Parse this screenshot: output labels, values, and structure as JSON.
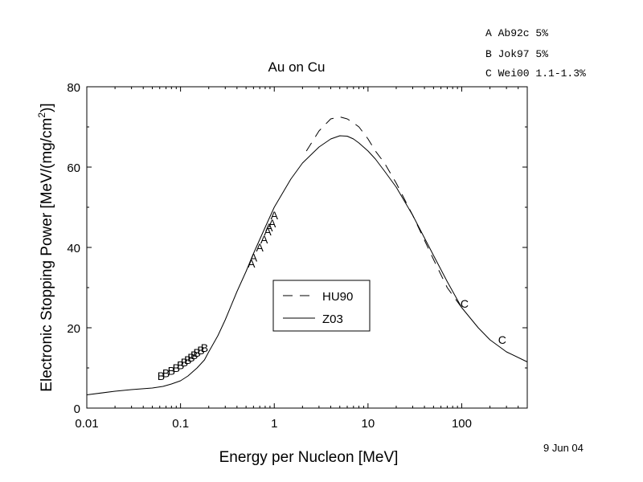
{
  "chart_data": {
    "type": "line",
    "title": "Au on Cu",
    "xlabel": "Energy per Nucleon [MeV]",
    "ylabel_main": "Electronic Stopping Power [MeV/(mg/cm",
    "ylabel_sup": "2",
    "ylabel_end": ")]",
    "x_scale": "log",
    "xlim": [
      0.01,
      500
    ],
    "ylim": [
      0,
      80
    ],
    "x_ticks": [
      {
        "value": 0.01,
        "label": "0.01"
      },
      {
        "value": 0.1,
        "label": "0.1"
      },
      {
        "value": 1,
        "label": "1"
      },
      {
        "value": 10,
        "label": "10"
      },
      {
        "value": 100,
        "label": "100"
      }
    ],
    "y_ticks": [
      {
        "value": 0,
        "label": "0"
      },
      {
        "value": 20,
        "label": "20"
      },
      {
        "value": 40,
        "label": "40"
      },
      {
        "value": 60,
        "label": "60"
      },
      {
        "value": 80,
        "label": "80"
      }
    ],
    "grid": false,
    "legend_position": "center",
    "series": [
      {
        "name": "HU90",
        "style": "dashed",
        "x": [
          2.2,
          3,
          4,
          5,
          6,
          7,
          8,
          10,
          12,
          15,
          20,
          30,
          50,
          70,
          100
        ],
        "y": [
          64,
          69,
          72,
          72.5,
          72,
          71,
          70,
          67,
          64,
          61,
          56,
          48,
          37,
          30,
          25
        ]
      },
      {
        "name": "Z03",
        "style": "solid",
        "x": [
          0.01,
          0.02,
          0.03,
          0.05,
          0.065,
          0.08,
          0.1,
          0.12,
          0.15,
          0.18,
          0.2,
          0.25,
          0.3,
          0.4,
          0.5,
          0.6,
          0.7,
          0.8,
          1,
          1.5,
          2,
          3,
          4,
          5,
          6,
          7,
          8,
          10,
          12,
          15,
          20,
          30,
          50,
          70,
          100,
          150,
          200,
          300,
          500
        ],
        "y": [
          3.3,
          4.2,
          4.6,
          5.0,
          5.4,
          6.0,
          6.8,
          8.0,
          10.0,
          12.0,
          14.0,
          18.0,
          22.0,
          29.0,
          34.0,
          38.5,
          42.0,
          45.0,
          50.0,
          57.0,
          61.0,
          65.0,
          67.0,
          67.8,
          67.7,
          67.0,
          66.0,
          64.0,
          62.0,
          59.0,
          55.0,
          48.0,
          38.0,
          31.5,
          25.0,
          20.0,
          17.0,
          14.0,
          11.5
        ]
      }
    ],
    "markers": [
      {
        "letter": "B",
        "x": 0.062,
        "y": 8
      },
      {
        "letter": "B",
        "x": 0.07,
        "y": 8.7
      },
      {
        "letter": "B",
        "x": 0.08,
        "y": 9.3
      },
      {
        "letter": "B",
        "x": 0.09,
        "y": 10
      },
      {
        "letter": "B",
        "x": 0.1,
        "y": 10.7
      },
      {
        "letter": "B",
        "x": 0.11,
        "y": 11.4
      },
      {
        "letter": "B",
        "x": 0.12,
        "y": 12
      },
      {
        "letter": "B",
        "x": 0.13,
        "y": 12.6
      },
      {
        "letter": "B",
        "x": 0.14,
        "y": 13.2
      },
      {
        "letter": "B",
        "x": 0.15,
        "y": 13.8
      },
      {
        "letter": "B",
        "x": 0.165,
        "y": 14.4
      },
      {
        "letter": "B",
        "x": 0.18,
        "y": 15
      },
      {
        "letter": "A",
        "x": 0.57,
        "y": 36
      },
      {
        "letter": "A",
        "x": 0.6,
        "y": 37.5
      },
      {
        "letter": "A",
        "x": 0.7,
        "y": 40
      },
      {
        "letter": "A",
        "x": 0.78,
        "y": 42
      },
      {
        "letter": "A",
        "x": 0.85,
        "y": 44
      },
      {
        "letter": "A",
        "x": 0.88,
        "y": 45
      },
      {
        "letter": "A",
        "x": 0.95,
        "y": 46
      },
      {
        "letter": "A",
        "x": 1.0,
        "y": 48
      },
      {
        "letter": "C",
        "x": 107,
        "y": 26
      },
      {
        "letter": "C",
        "x": 270,
        "y": 17
      }
    ]
  },
  "references": [
    "A Ab92c 5%",
    "B Jok97 5%",
    "C Wei00 1.1-1.3%"
  ],
  "date": "9 Jun 04"
}
